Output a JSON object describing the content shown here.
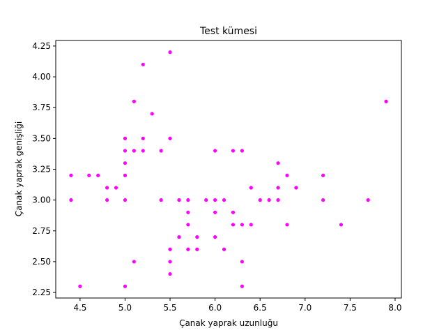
{
  "chart_data": {
    "type": "scatter",
    "title": "Test kümesi",
    "xlabel": "Çanak yaprak uzunluğu",
    "ylabel": "Çanak yaprak genişliği",
    "xlim": [
      4.23,
      8.07
    ],
    "ylim": [
      2.205,
      4.295
    ],
    "xticks": [
      4.5,
      5.0,
      5.5,
      6.0,
      6.5,
      7.0,
      7.5,
      8.0
    ],
    "xtick_labels": [
      "4.5",
      "5.0",
      "5.5",
      "6.0",
      "6.5",
      "7.0",
      "7.5",
      "8.0"
    ],
    "yticks": [
      2.25,
      2.5,
      2.75,
      3.0,
      3.25,
      3.5,
      3.75,
      4.0,
      4.25
    ],
    "ytick_labels": [
      "2.25",
      "2.50",
      "2.75",
      "3.00",
      "3.25",
      "3.50",
      "3.75",
      "4.00",
      "4.25"
    ],
    "grid": false,
    "marker_color": "#ff00ff",
    "points": [
      [
        4.4,
        3.2
      ],
      [
        4.4,
        3.0
      ],
      [
        4.5,
        2.3
      ],
      [
        4.6,
        3.2
      ],
      [
        4.7,
        3.2
      ],
      [
        4.8,
        3.1
      ],
      [
        4.8,
        3.0
      ],
      [
        4.9,
        3.1
      ],
      [
        5.0,
        3.5
      ],
      [
        5.0,
        3.4
      ],
      [
        5.0,
        3.3
      ],
      [
        5.0,
        3.2
      ],
      [
        5.0,
        3.0
      ],
      [
        5.0,
        2.3
      ],
      [
        5.1,
        3.8
      ],
      [
        5.1,
        3.4
      ],
      [
        5.1,
        2.5
      ],
      [
        5.2,
        4.1
      ],
      [
        5.2,
        3.5
      ],
      [
        5.2,
        3.4
      ],
      [
        5.3,
        3.7
      ],
      [
        5.4,
        3.4
      ],
      [
        5.4,
        3.0
      ],
      [
        5.5,
        4.2
      ],
      [
        5.5,
        3.5
      ],
      [
        5.5,
        2.6
      ],
      [
        5.5,
        2.5
      ],
      [
        5.5,
        2.4
      ],
      [
        5.6,
        3.0
      ],
      [
        5.6,
        2.7
      ],
      [
        5.7,
        3.0
      ],
      [
        5.7,
        2.9
      ],
      [
        5.7,
        2.8
      ],
      [
        5.7,
        2.6
      ],
      [
        5.8,
        2.7
      ],
      [
        5.8,
        2.6
      ],
      [
        5.9,
        3.0
      ],
      [
        6.0,
        3.4
      ],
      [
        6.0,
        3.0
      ],
      [
        6.0,
        2.9
      ],
      [
        6.0,
        2.7
      ],
      [
        6.1,
        3.0
      ],
      [
        6.1,
        2.6
      ],
      [
        6.2,
        3.4
      ],
      [
        6.2,
        2.9
      ],
      [
        6.2,
        2.8
      ],
      [
        6.3,
        3.4
      ],
      [
        6.3,
        2.8
      ],
      [
        6.3,
        2.5
      ],
      [
        6.3,
        2.3
      ],
      [
        6.4,
        3.1
      ],
      [
        6.4,
        2.8
      ],
      [
        6.5,
        3.0
      ],
      [
        6.6,
        3.0
      ],
      [
        6.7,
        3.3
      ],
      [
        6.7,
        3.1
      ],
      [
        6.7,
        3.0
      ],
      [
        6.8,
        3.2
      ],
      [
        6.8,
        2.8
      ],
      [
        6.9,
        3.1
      ],
      [
        7.2,
        3.2
      ],
      [
        7.2,
        3.0
      ],
      [
        7.4,
        2.8
      ],
      [
        7.7,
        3.0
      ],
      [
        7.9,
        3.8
      ]
    ]
  }
}
